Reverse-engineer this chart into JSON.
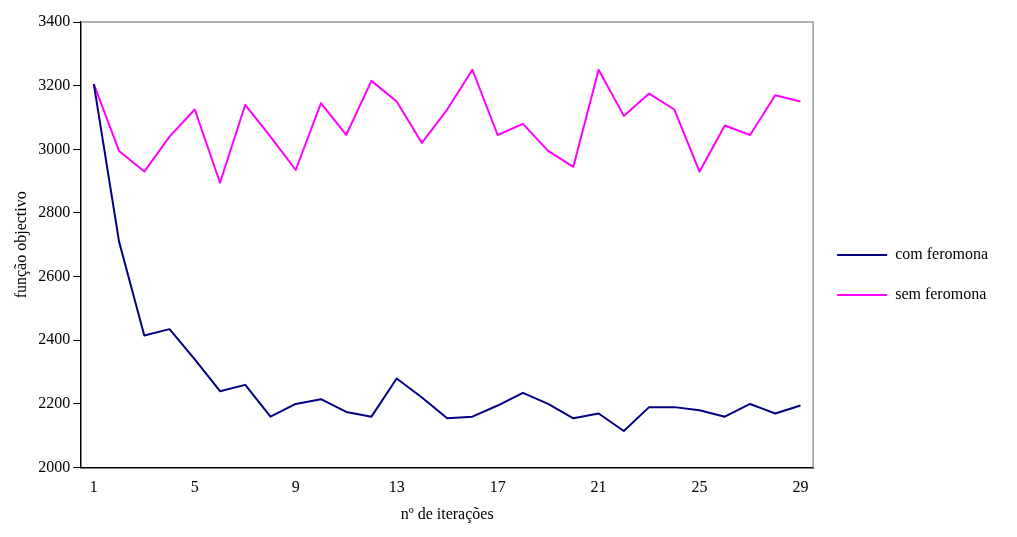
{
  "chart_data": {
    "type": "line",
    "xlabel": "nº de iterações",
    "ylabel": "função objectivo",
    "categories": [
      "1",
      null,
      null,
      null,
      "5",
      null,
      null,
      null,
      "9",
      null,
      null,
      null,
      "13",
      null,
      null,
      null,
      "17",
      null,
      null,
      null,
      "21",
      null,
      null,
      null,
      "25",
      null,
      null,
      null,
      "29"
    ],
    "series": [
      {
        "name": "com feromona",
        "color": "#000080",
        "values": [
          3205,
          2710,
          2415,
          2435,
          2340,
          2240,
          2260,
          2160,
          2200,
          2215,
          2175,
          2160,
          2280,
          2220,
          2155,
          2160,
          2195,
          2235,
          2200,
          2155,
          2170,
          2115,
          2190,
          2190,
          2180,
          2160,
          2200,
          2170,
          2195
        ]
      },
      {
        "name": "sem feromona",
        "color": "#ff00ff",
        "values": [
          3205,
          2995,
          2930,
          3040,
          3125,
          2895,
          3140,
          3040,
          2935,
          3145,
          3045,
          3215,
          3150,
          3020,
          3125,
          3250,
          3045,
          3080,
          2995,
          2945,
          3250,
          3105,
          3175,
          3125,
          2930,
          3075,
          3045,
          3170,
          3150
        ]
      }
    ],
    "ylim": [
      2000,
      3400
    ],
    "yticks": [
      2000,
      2200,
      2400,
      2600,
      2800,
      3000,
      3200,
      3400
    ],
    "grid": false,
    "legend": "right",
    "marker": "none",
    "line_style": "solid"
  }
}
